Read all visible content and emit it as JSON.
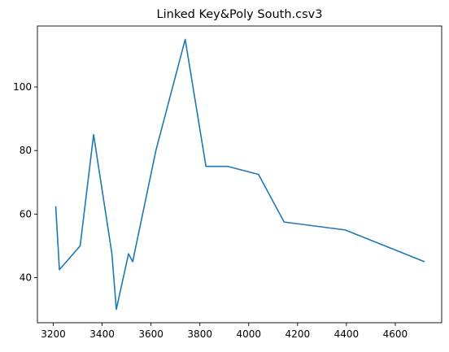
{
  "chart_data": {
    "type": "line",
    "title": "Linked Key&Poly South.csv3",
    "xlabel": "",
    "ylabel": "",
    "xlim": [
      3135,
      4790
    ],
    "ylim": [
      25.8,
      119.2
    ],
    "x_ticks": [
      3200,
      3400,
      3600,
      3800,
      4000,
      4200,
      4400,
      4600
    ],
    "y_ticks": [
      40,
      60,
      80,
      100
    ],
    "grid": false,
    "series": [
      {
        "color": "#1f77b4",
        "x": [
          3210,
          3225,
          3310,
          3365,
          3440,
          3458,
          3508,
          3525,
          3620,
          3740,
          3825,
          3915,
          4040,
          4145,
          4395,
          4720
        ],
        "y": [
          62.5,
          42.5,
          50,
          85,
          47.5,
          30,
          47.5,
          45,
          80,
          115,
          75,
          75,
          72.5,
          57.5,
          55,
          45
        ]
      }
    ]
  }
}
